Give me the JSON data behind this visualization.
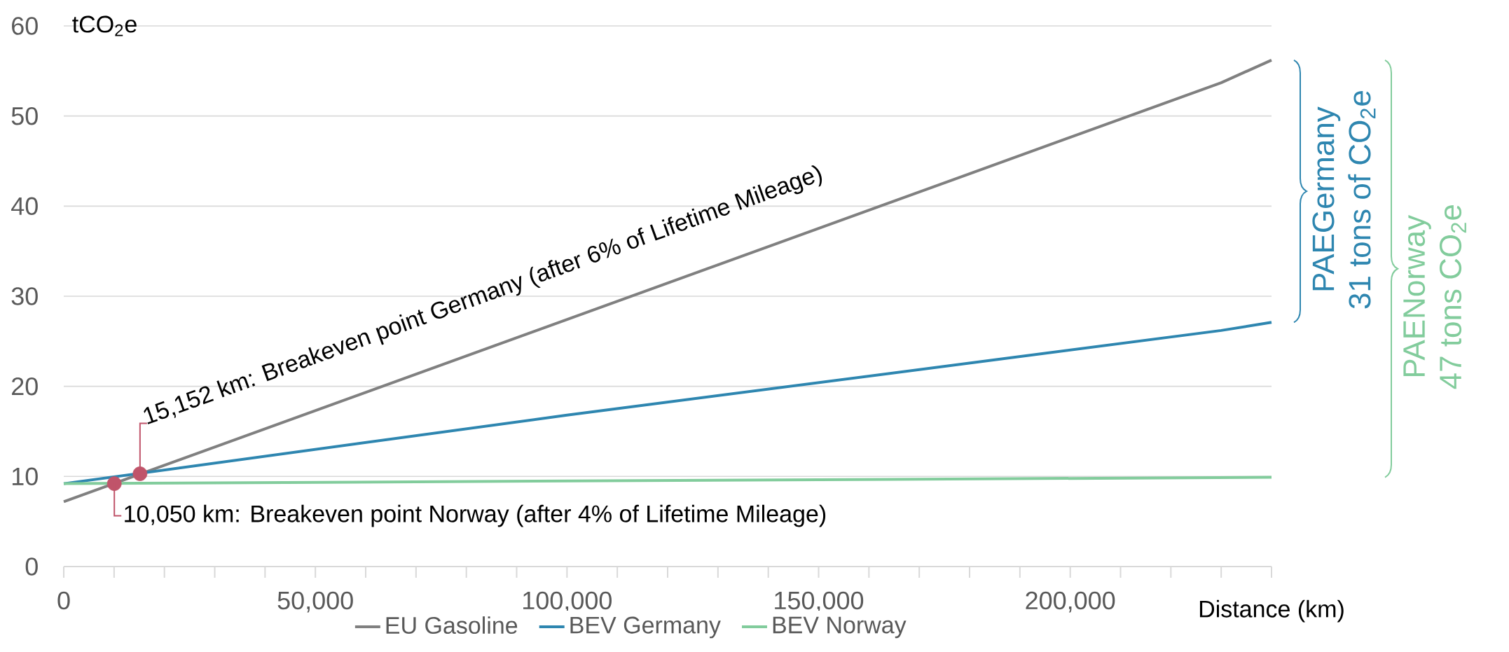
{
  "chart_data": {
    "type": "line",
    "xlabel": "Distance (km)",
    "ylabel": "tCO$_{2}$e",
    "xlim": [
      0,
      240000
    ],
    "ylim": [
      0,
      60
    ],
    "xticks": [
      {
        "value": 0,
        "label": "0"
      },
      {
        "value": 10000,
        "label": null
      },
      {
        "value": 20000,
        "label": null
      },
      {
        "value": 30000,
        "label": null
      },
      {
        "value": 40000,
        "label": null
      },
      {
        "value": 50000,
        "label": "50,000"
      },
      {
        "value": 60000,
        "label": null
      },
      {
        "value": 70000,
        "label": null
      },
      {
        "value": 80000,
        "label": null
      },
      {
        "value": 90000,
        "label": null
      },
      {
        "value": 100000,
        "label": "100,000"
      },
      {
        "value": 110000,
        "label": null
      },
      {
        "value": 120000,
        "label": null
      },
      {
        "value": 130000,
        "label": null
      },
      {
        "value": 140000,
        "label": null
      },
      {
        "value": 150000,
        "label": "150,000"
      },
      {
        "value": 160000,
        "label": null
      },
      {
        "value": 170000,
        "label": null
      },
      {
        "value": 180000,
        "label": null
      },
      {
        "value": 190000,
        "label": null
      },
      {
        "value": 200000,
        "label": "200,000"
      },
      {
        "value": 210000,
        "label": null
      },
      {
        "value": 220000,
        "label": null
      },
      {
        "value": 230000,
        "label": null
      },
      {
        "value": 240000,
        "label": null
      }
    ],
    "yticks": [
      0,
      10,
      20,
      30,
      40,
      50,
      60
    ],
    "grid": "y",
    "legend": "bottom",
    "series": [
      {
        "name": "EU Gasoline",
        "color": "#808080",
        "x": [
          0,
          230000,
          240000
        ],
        "values": [
          7.2,
          53.7,
          56.2
        ]
      },
      {
        "name": "BEV Germany",
        "color": "#2e86b0",
        "x": [
          0,
          100000,
          230000,
          240000
        ],
        "values": [
          9.2,
          16.8,
          26.2,
          27.1
        ]
      },
      {
        "name": "BEV Norway",
        "color": "#82cc9c",
        "x": [
          0,
          240000
        ],
        "values": [
          9.2,
          9.9
        ]
      },
      {
        "type": "scatter",
        "color": "#c0546a",
        "x": [
          15152,
          10050
        ],
        "values": [
          10.3,
          9.2
        ]
      }
    ],
    "annotations": [
      {
        "text": "15,152 km: Breakeven point Germany (after 6% of Lifetime Mileage)",
        "x": 15152,
        "y": 10.3
      },
      {
        "text": "10,050 km: Breakeven point Norway (after 4% of Lifetime Mileage)",
        "x": 10050,
        "y": 9.2
      },
      "PAEGermany",
      "31 tons of CO$_{2}$e",
      "PAENorway",
      "47 tons CO$_{2}$e"
    ]
  }
}
